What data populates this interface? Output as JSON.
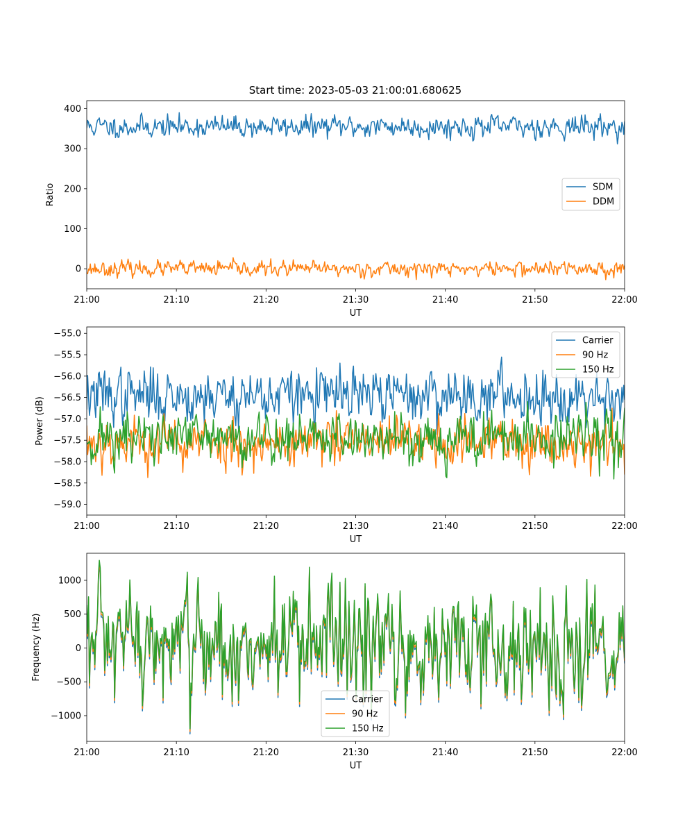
{
  "figure": {
    "title": "Start time: 2023-05-03 21:00:01.680625"
  },
  "chart_data": [
    {
      "type": "line",
      "title": "Start time: 2023-05-03 21:00:01.680625",
      "xlabel": "UT",
      "ylabel": "Ratio",
      "x_range": [
        "21:00",
        "22:00"
      ],
      "x_ticks": [
        "21:00",
        "21:10",
        "21:20",
        "21:30",
        "21:40",
        "21:50",
        "22:00"
      ],
      "ylim": [
        -50,
        420
      ],
      "y_ticks": [
        0,
        100,
        200,
        300,
        400
      ],
      "y_tick_labels": [
        "0",
        "100",
        "200",
        "300",
        "400"
      ],
      "legend": "center-right",
      "grid": false,
      "series": [
        {
          "name": "SDM",
          "color": "#1f77b4",
          "mean": 355,
          "noise": 13,
          "seed": 11
        },
        {
          "name": "DDM",
          "color": "#ff7f0e",
          "mean": 0,
          "noise": 9,
          "seed": 23
        }
      ]
    },
    {
      "type": "line",
      "title": "",
      "xlabel": "UT",
      "ylabel": "Power (dB)",
      "x_range": [
        "21:00",
        "22:00"
      ],
      "x_ticks": [
        "21:00",
        "21:10",
        "21:20",
        "21:30",
        "21:40",
        "21:50",
        "22:00"
      ],
      "ylim": [
        -59.25,
        -54.85
      ],
      "y_ticks": [
        -59.0,
        -58.5,
        -58.0,
        -57.5,
        -57.0,
        -56.5,
        -56.0,
        -55.5,
        -55.0
      ],
      "y_tick_labels": [
        "−59.0",
        "−58.5",
        "−58.0",
        "−57.5",
        "−57.0",
        "−56.5",
        "−56.0",
        "−55.5",
        "−55.0"
      ],
      "legend": "top-right",
      "grid": false,
      "series": [
        {
          "name": "Carrier",
          "color": "#1f77b4",
          "mean": -56.45,
          "noise": 0.3,
          "seed": 37
        },
        {
          "name": "90 Hz",
          "color": "#ff7f0e",
          "mean": -57.55,
          "noise": 0.28,
          "seed": 53
        },
        {
          "name": "150 Hz",
          "color": "#2ca02c",
          "mean": -57.45,
          "noise": 0.3,
          "seed": 71
        }
      ]
    },
    {
      "type": "line",
      "title": "",
      "xlabel": "UT",
      "ylabel": "Frequency (Hz)",
      "x_range": [
        "21:00",
        "22:00"
      ],
      "x_ticks": [
        "21:00",
        "21:10",
        "21:20",
        "21:30",
        "21:40",
        "21:50",
        "22:00"
      ],
      "ylim": [
        -1380,
        1400
      ],
      "y_ticks": [
        -1000,
        -500,
        0,
        500,
        1000
      ],
      "y_tick_labels": [
        "−1000",
        "−500",
        "0",
        "500",
        "1000"
      ],
      "legend": "bottom-center",
      "grid": false,
      "series": [
        {
          "name": "Carrier",
          "color": "#1f77b4",
          "offset": -60,
          "seed": 97
        },
        {
          "name": "90 Hz",
          "color": "#ff7f0e",
          "offset": -25,
          "seed": 97
        },
        {
          "name": "150 Hz",
          "color": "#2ca02c",
          "offset": 15,
          "seed": 97
        }
      ]
    }
  ]
}
